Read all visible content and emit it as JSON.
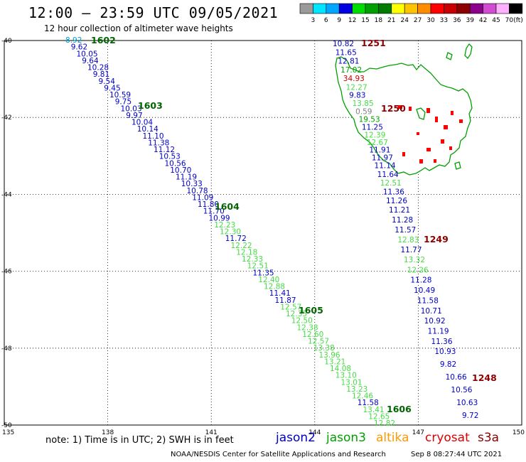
{
  "header": {
    "title": "12:00 – 23:59 UTC 09/05/2021",
    "subtitle": "12 hour collection of altimeter wave heights"
  },
  "scale": {
    "unit": "(ft)",
    "stops": [
      {
        "label": "3",
        "color": "#9a9a9a"
      },
      {
        "label": "6",
        "color": "#00e5ff"
      },
      {
        "label": "9",
        "color": "#00a6ff"
      },
      {
        "label": "12",
        "color": "#0000e0"
      },
      {
        "label": "15",
        "color": "#00dd00"
      },
      {
        "label": "18",
        "color": "#00a000"
      },
      {
        "label": "21",
        "color": "#007a00"
      },
      {
        "label": "24",
        "color": "#ffff00"
      },
      {
        "label": "27",
        "color": "#ffc400"
      },
      {
        "label": "30",
        "color": "#ff8c00"
      },
      {
        "label": "33",
        "color": "#ff0000"
      },
      {
        "label": "36",
        "color": "#c80000"
      },
      {
        "label": "39",
        "color": "#8c0000"
      },
      {
        "label": "42",
        "color": "#8c008c"
      },
      {
        "label": "45",
        "color": "#d24cd2"
      },
      {
        "label": "70",
        "color": "#ffb0ff"
      },
      {
        "label": "",
        "color": "#000000"
      }
    ]
  },
  "axes": {
    "lon_labels": [
      "135",
      "138",
      "141",
      "144",
      "147",
      "150"
    ],
    "lat_labels": [
      "-40",
      "-42",
      "-44",
      "-46",
      "-48",
      "-50"
    ]
  },
  "tracks": [
    {
      "id": "1602",
      "label_color": "#006400"
    },
    {
      "id": "1603",
      "label_color": "#006400"
    },
    {
      "id": "1604",
      "label_color": "#006400"
    },
    {
      "id": "1605",
      "label_color": "#006400"
    },
    {
      "id": "1606",
      "label_color": "#006400"
    },
    {
      "id": "1251",
      "label_color": "#8b0000"
    },
    {
      "id": "1250",
      "label_color": "#8b0000"
    },
    {
      "id": "1249",
      "label_color": "#8b0000"
    },
    {
      "id": "1248",
      "label_color": "#8b0000"
    }
  ],
  "track_a_values": [
    {
      "v": "8.92",
      "c": "#00a0c8"
    },
    {
      "v": "9.62",
      "c": "#0000c8"
    },
    {
      "v": "10.05",
      "c": "#0000c8"
    },
    {
      "v": "9.64",
      "c": "#0000c8"
    },
    {
      "v": "10.28",
      "c": "#0000c8"
    },
    {
      "v": "9.81",
      "c": "#0000c8"
    },
    {
      "v": "9.54",
      "c": "#0000c8"
    },
    {
      "v": "9.45",
      "c": "#0000c8"
    },
    {
      "v": "10.59",
      "c": "#0000c8"
    },
    {
      "v": "9.75",
      "c": "#0000c8"
    },
    {
      "v": "10.03",
      "c": "#0000c8"
    },
    {
      "v": "9.97",
      "c": "#0000c8"
    },
    {
      "v": "10.04",
      "c": "#0000c8"
    },
    {
      "v": "10.14",
      "c": "#0000c8"
    },
    {
      "v": "11.10",
      "c": "#0000c8"
    },
    {
      "v": "11.38",
      "c": "#0000c8"
    },
    {
      "v": "11.12",
      "c": "#0000c8"
    },
    {
      "v": "10.53",
      "c": "#0000c8"
    },
    {
      "v": "10.56",
      "c": "#0000c8"
    },
    {
      "v": "10.70",
      "c": "#0000c8"
    },
    {
      "v": "11.19",
      "c": "#0000c8"
    },
    {
      "v": "10.33",
      "c": "#0000c8"
    },
    {
      "v": "10.78",
      "c": "#0000c8"
    },
    {
      "v": "11.09",
      "c": "#0000c8"
    },
    {
      "v": "11.80",
      "c": "#0000c8"
    },
    {
      "v": "11.70",
      "c": "#0000c8"
    },
    {
      "v": "10.99",
      "c": "#0000c8"
    },
    {
      "v": "12.23",
      "c": "#44dd44"
    },
    {
      "v": "12.30",
      "c": "#44dd44"
    },
    {
      "v": "11.72",
      "c": "#0000c8"
    },
    {
      "v": "12.22",
      "c": "#44dd44"
    },
    {
      "v": "12.18",
      "c": "#44dd44"
    },
    {
      "v": "12.33",
      "c": "#44dd44"
    },
    {
      "v": "12.51",
      "c": "#44dd44"
    },
    {
      "v": "11.35",
      "c": "#0000c8"
    },
    {
      "v": "12.40",
      "c": "#44dd44"
    },
    {
      "v": "12.88",
      "c": "#44dd44"
    },
    {
      "v": "11.41",
      "c": "#0000c8"
    },
    {
      "v": "11.87",
      "c": "#0000c8"
    },
    {
      "v": "12.57",
      "c": "#44dd44"
    },
    {
      "v": "12.35",
      "c": "#44dd44"
    },
    {
      "v": "12.50",
      "c": "#44dd44"
    },
    {
      "v": "12.38",
      "c": "#44dd44"
    },
    {
      "v": "12.60",
      "c": "#44dd44"
    },
    {
      "v": "12.57",
      "c": "#44dd44"
    },
    {
      "v": "13.38",
      "c": "#44dd44"
    },
    {
      "v": "13.96",
      "c": "#44dd44"
    },
    {
      "v": "13.21",
      "c": "#44dd44"
    },
    {
      "v": "14.08",
      "c": "#44dd44"
    },
    {
      "v": "13.10",
      "c": "#44dd44"
    },
    {
      "v": "13.01",
      "c": "#44dd44"
    },
    {
      "v": "13.23",
      "c": "#44dd44"
    },
    {
      "v": "12.46",
      "c": "#44dd44"
    },
    {
      "v": "11.58",
      "c": "#0000c8"
    },
    {
      "v": "13.41",
      "c": "#44dd44"
    },
    {
      "v": "12.65",
      "c": "#44dd44"
    },
    {
      "v": "12.82",
      "c": "#44dd44"
    }
  ],
  "track_b_values": [
    {
      "v": "10.82",
      "c": "#0000c8"
    },
    {
      "v": "11.65",
      "c": "#0000c8"
    },
    {
      "v": "12.81",
      "c": "#0000c8"
    },
    {
      "v": "17.02",
      "c": "#00a000"
    },
    {
      "v": "34.93",
      "c": "#c80000"
    },
    {
      "v": "12.27",
      "c": "#44dd44"
    },
    {
      "v": "9.83",
      "c": "#0000c8"
    },
    {
      "v": "13.85",
      "c": "#44dd44"
    },
    {
      "v": "0.59",
      "c": "#808080"
    },
    {
      "v": "19.53",
      "c": "#00a000"
    },
    {
      "v": "11.25",
      "c": "#0000c8"
    },
    {
      "v": "12.39",
      "c": "#44dd44"
    },
    {
      "v": "12.67",
      "c": "#44dd44"
    },
    {
      "v": "11.91",
      "c": "#0000c8"
    },
    {
      "v": "11.97",
      "c": "#0000c8"
    },
    {
      "v": "11.14",
      "c": "#0000c8"
    },
    {
      "v": "11.64",
      "c": "#0000c8"
    },
    {
      "v": "12.51",
      "c": "#44dd44"
    },
    {
      "v": "11.36",
      "c": "#0000c8"
    },
    {
      "v": "11.26",
      "c": "#0000c8"
    },
    {
      "v": "11.21",
      "c": "#0000c8"
    },
    {
      "v": "11.28",
      "c": "#0000c8"
    },
    {
      "v": "11.57",
      "c": "#0000c8"
    },
    {
      "v": "12.83",
      "c": "#44dd44"
    },
    {
      "v": "11.77",
      "c": "#0000c8"
    },
    {
      "v": "13.32",
      "c": "#44dd44"
    },
    {
      "v": "12.26",
      "c": "#44dd44"
    },
    {
      "v": "11.28",
      "c": "#0000c8"
    },
    {
      "v": "10.49",
      "c": "#0000c8"
    },
    {
      "v": "11.58",
      "c": "#0000c8"
    },
    {
      "v": "10.71",
      "c": "#0000c8"
    },
    {
      "v": "10.92",
      "c": "#0000c8"
    },
    {
      "v": "11.19",
      "c": "#0000c8"
    },
    {
      "v": "11.36",
      "c": "#0000c8"
    },
    {
      "v": "10.93",
      "c": "#0000c8"
    },
    {
      "v": "9.82",
      "c": "#0000c8"
    },
    {
      "v": "10.66",
      "c": "#0000c8"
    },
    {
      "v": "10.56",
      "c": "#0000c8"
    },
    {
      "v": "10.63",
      "c": "#0000c8"
    },
    {
      "v": "9.72",
      "c": "#0000c8"
    }
  ],
  "footer": {
    "note": "note: 1) Time is in UTC; 2) SWH is in feet",
    "satellites": [
      {
        "name": "jason2",
        "color": "#0000c8"
      },
      {
        "name": "jason3",
        "color": "#00a000"
      },
      {
        "name": "altika",
        "color": "#ff9900"
      },
      {
        "name": "cryosat",
        "color": "#e00000"
      },
      {
        "name": "s3a",
        "color": "#8b0000"
      }
    ],
    "credit": "NOAA/NESDIS Center for Satellite Applications and Research",
    "generated": "Sep  8 08:27:44 UTC 2021"
  }
}
